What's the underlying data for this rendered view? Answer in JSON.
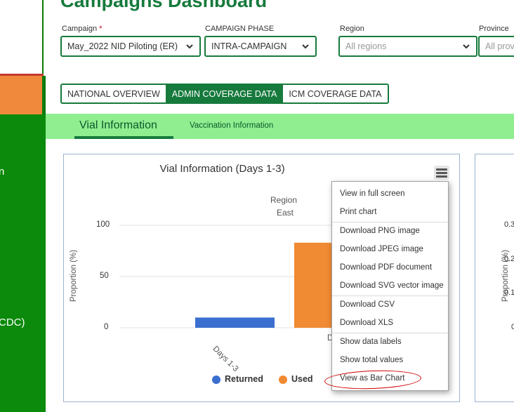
{
  "sidebar": {
    "fragments": [
      "n",
      "CDC)"
    ]
  },
  "header": {
    "title": "Campaigns Dashboard"
  },
  "filters": {
    "campaign": {
      "label": "Campaign",
      "required_mark": "*",
      "value": "May_2022 NID Piloting (ER)"
    },
    "phase": {
      "label": "CAMPAIGN PHASE",
      "value": "INTRA-CAMPAIGN"
    },
    "region": {
      "label": "Region",
      "placeholder": "All regions"
    },
    "province": {
      "label": "Province",
      "placeholder": "All prov"
    }
  },
  "tabs": [
    {
      "label": "NATIONAL OVERVIEW",
      "active": false
    },
    {
      "label": "ADMIN COVERAGE DATA",
      "active": true
    },
    {
      "label": "ICM COVERAGE DATA",
      "active": false
    }
  ],
  "subnav": {
    "items": [
      "Vial Information",
      "Vaccination Information"
    ]
  },
  "chart_data": {
    "type": "bar",
    "title": "Vial Information (Days 1-3)",
    "group_header": [
      "Region",
      "East"
    ],
    "categories": [
      "Days 1-3"
    ],
    "ylabel": "Proportion (%)",
    "ylim": [
      0,
      100
    ],
    "yticks": [
      "100",
      "50",
      "0"
    ],
    "series": [
      {
        "name": "Returned",
        "values": [
          10
        ],
        "color": "#3a6fd0"
      },
      {
        "name": "Used",
        "values": [
          83
        ],
        "color": "#f08a33"
      }
    ]
  },
  "second_chart": {
    "ylabel": "Proportion (%)",
    "yticks": [
      "0.3",
      "0.2",
      "0.1",
      "0"
    ]
  },
  "menu": {
    "icon": "hamburger-icon",
    "items": [
      "View in full screen",
      "Print chart",
      "Download PNG image",
      "Download JPEG image",
      "Download PDF document",
      "Download SVG vector image",
      "Download CSV",
      "Download XLS",
      "Show data labels",
      "Show total values",
      "View as Bar Chart"
    ]
  },
  "colors": {
    "brand_green": "#167a3c",
    "sidebar_green": "#0b8a0b",
    "subnav_green": "#90ee90",
    "highlight_orange": "#f0893b"
  }
}
